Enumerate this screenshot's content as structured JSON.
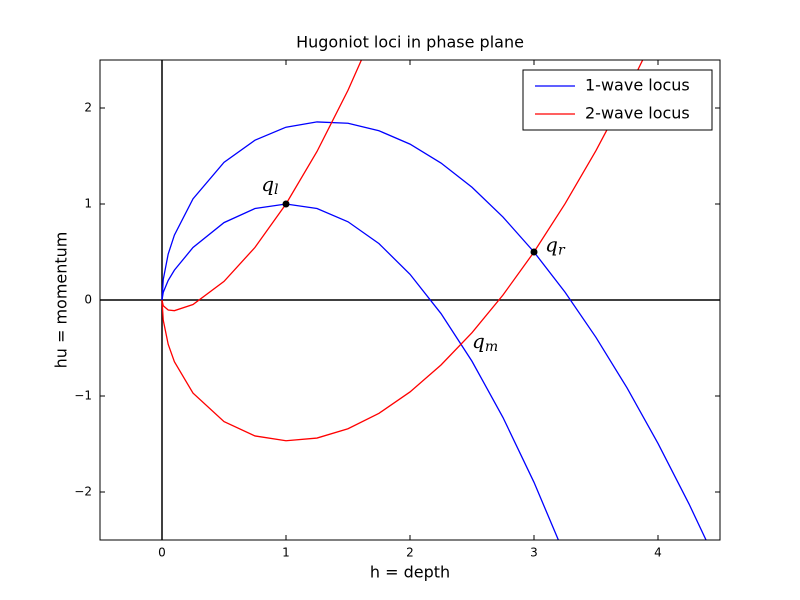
{
  "chart_data": {
    "type": "line",
    "title": "Hugoniot loci in phase plane",
    "x_label": "h = depth",
    "y_label": "hu = momentum",
    "xlim": [
      -0.5,
      4.5
    ],
    "ylim": [
      -2.5,
      2.5
    ],
    "xticks": [
      0,
      1,
      2,
      3,
      4
    ],
    "yticks": [
      {
        "value": -2,
        "label": "−2"
      },
      {
        "value": -1,
        "label": "−1"
      },
      0,
      1,
      2
    ],
    "zero_lines": true,
    "legend": "upper right",
    "series": [
      {
        "name": "1-wave locus",
        "color": "#0000ff",
        "x": [
          0,
          0.01,
          0.05,
          0.1,
          0.25,
          0.5,
          0.75,
          1,
          1.25,
          1.5,
          1.75,
          2,
          2.25,
          2.5,
          2.75,
          3,
          3.25,
          null,
          0,
          0.01,
          0.05,
          0.1,
          0.25,
          0.5,
          0.75,
          1,
          1.25,
          1.5,
          1.75,
          2,
          2.25,
          2.5,
          2.75,
          3,
          3.25,
          3.5,
          3.75,
          4,
          4.25,
          4.5
        ],
        "values": [
          0,
          0.08,
          0.204,
          0.311,
          0.547,
          0.806,
          0.953,
          1,
          0.953,
          0.815,
          0.587,
          0.268,
          -0.141,
          -0.638,
          -1.224,
          -1.899,
          -2.663,
          null,
          0,
          0.213,
          0.479,
          0.676,
          1.054,
          1.434,
          1.665,
          1.8,
          1.855,
          1.841,
          1.763,
          1.624,
          1.427,
          1.174,
          0.864,
          0.5,
          0.082,
          -0.39,
          -0.915,
          -1.494,
          -2.124,
          -2.808
        ]
      },
      {
        "name": "2-wave locus",
        "color": "#ff0000",
        "x": [
          0,
          0.01,
          0.05,
          0.1,
          0.25,
          0.5,
          0.75,
          1,
          1.25,
          1.5,
          1.75,
          null,
          0,
          0.01,
          0.05,
          0.1,
          0.25,
          0.5,
          0.75,
          1,
          1.25,
          1.5,
          1.75,
          2,
          2.25,
          2.5,
          2.75,
          3,
          3.25,
          3.5,
          3.75,
          4
        ],
        "values": [
          0,
          -0.06,
          -0.104,
          -0.111,
          -0.047,
          0.194,
          0.548,
          1,
          1.547,
          2.185,
          2.913,
          null,
          0,
          -0.21,
          -0.462,
          -0.643,
          -0.97,
          -1.267,
          -1.416,
          -1.466,
          -1.438,
          -1.341,
          -1.18,
          -0.958,
          -0.677,
          -0.34,
          0.052,
          0.5,
          1.002,
          1.557,
          2.166,
          2.827
        ]
      }
    ],
    "points": {
      "color": "#000000",
      "x": [
        1,
        3
      ],
      "values": [
        1,
        0.5
      ]
    },
    "annotations": [
      {
        "text": "q",
        "sub": "l",
        "x": 0.8,
        "y": 1.2
      },
      {
        "text": "q",
        "sub": "r",
        "x": 3.09,
        "y": 0.57
      },
      {
        "text": "q",
        "sub": "m",
        "x": 2.5,
        "y": -0.44
      }
    ]
  }
}
